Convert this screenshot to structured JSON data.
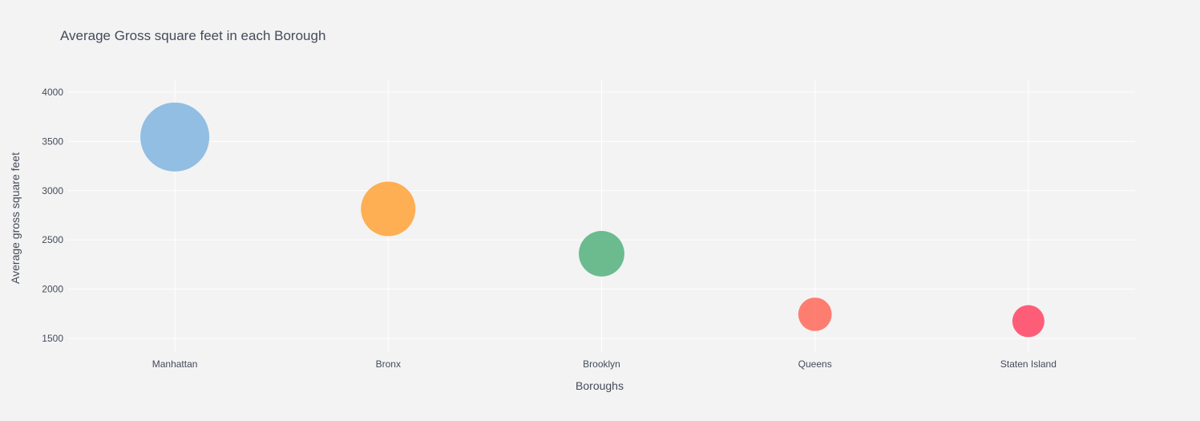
{
  "chart_data": {
    "type": "scatter",
    "title": "Average Gross square feet in each Borough",
    "xlabel": "Boroughs",
    "ylabel": "Average gross square feet",
    "categories": [
      "Manhattan",
      "Bronx",
      "Brooklyn",
      "Queens",
      "Staten Island"
    ],
    "values": [
      3545,
      2815,
      2360,
      1745,
      1675
    ],
    "colors": [
      "#86b8e0",
      "#ffa641",
      "#5cb584",
      "#ff7063",
      "#ff4d6a"
    ],
    "ylim": [
      1370,
      4130
    ],
    "yticks": [
      1500,
      2000,
      2500,
      3000,
      3500,
      4000
    ],
    "grid": true,
    "legend": "none"
  }
}
